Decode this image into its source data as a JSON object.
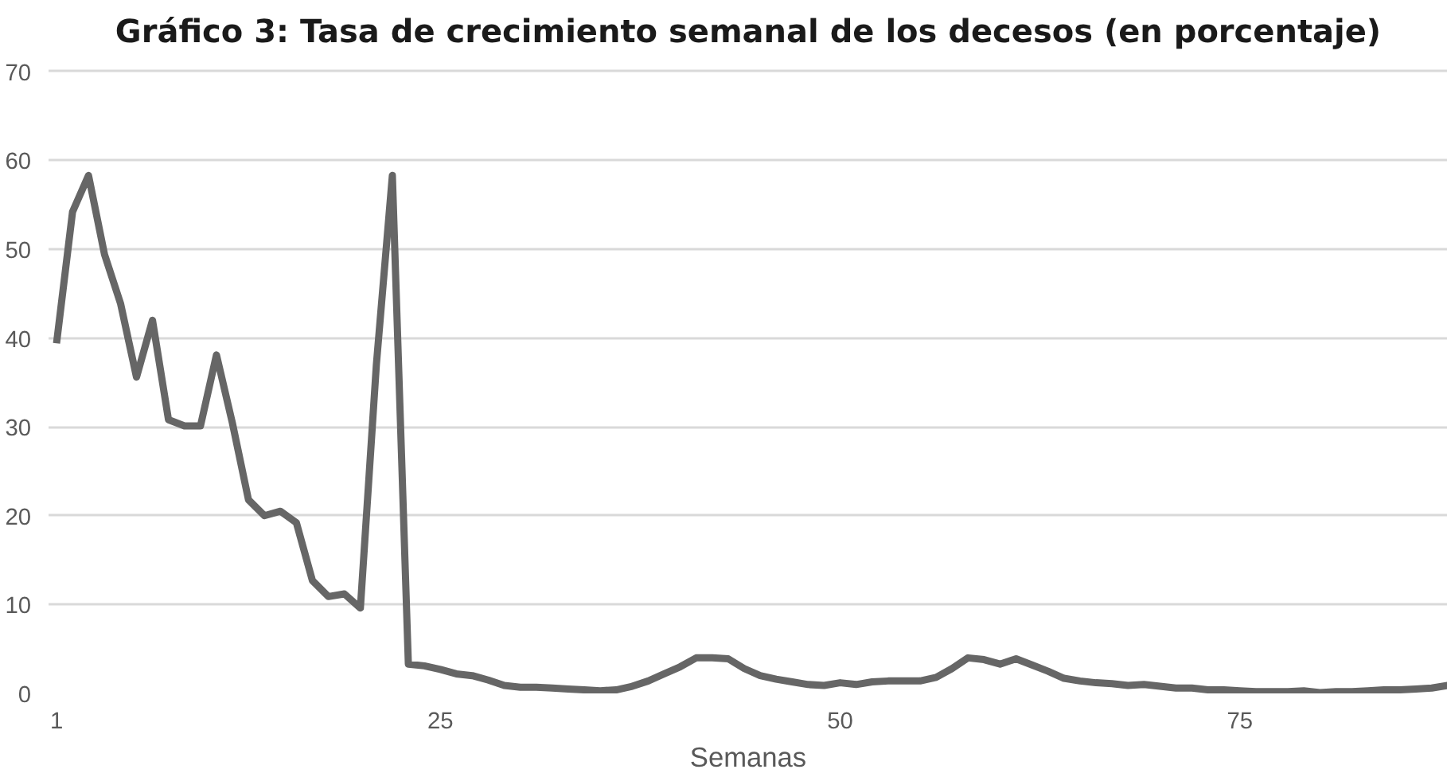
{
  "chart_data": {
    "type": "line",
    "title": "Gráfico 3: Tasa de crecimiento semanal de los decesos (en porcentaje)",
    "xlabel": "Semanas",
    "x": [
      1,
      2,
      3,
      4,
      5,
      6,
      7,
      8,
      9,
      10,
      11,
      12,
      13,
      14,
      15,
      16,
      17,
      18,
      19,
      20,
      21,
      22,
      23,
      24,
      25,
      26,
      27,
      28,
      29,
      30,
      31,
      32,
      33,
      34,
      35,
      36,
      37,
      38,
      39,
      40,
      41,
      42,
      43,
      44,
      45,
      46,
      47,
      48,
      49,
      50,
      51,
      52,
      53,
      54,
      55,
      56,
      57,
      58,
      59,
      60,
      61,
      62,
      63,
      64,
      65,
      66,
      67,
      68,
      69,
      70,
      71,
      72,
      73,
      74,
      75,
      76,
      77,
      78,
      79,
      80,
      81,
      82,
      83,
      84,
      85,
      86,
      87,
      88
    ],
    "series": [
      {
        "color": "#666666",
        "values": [
          39.4,
          54.2,
          58.3,
          49.4,
          43.9,
          35.6,
          42.0,
          30.8,
          30.1,
          30.1,
          38.1,
          30.4,
          21.8,
          20.0,
          20.5,
          19.2,
          12.7,
          10.9,
          11.2,
          9.6,
          37,
          58.3,
          3.3,
          3.1,
          2.7,
          2.2,
          2.0,
          1.5,
          0.9,
          0.7,
          0.7,
          0.6,
          0.5,
          0.4,
          0.3,
          0.4,
          0.8,
          1.4,
          2.2,
          3.0,
          4.0,
          4.0,
          3.9,
          2.8,
          2.0,
          1.6,
          1.3,
          1.0,
          0.9,
          1.2,
          1.0,
          1.3,
          1.4,
          1.4,
          1.4,
          1.8,
          2.8,
          4.0,
          3.8,
          3.3,
          3.9,
          3.2,
          2.5,
          1.7,
          1.4,
          1.2,
          1.1,
          0.9,
          1.0,
          0.8,
          0.6,
          0.6,
          0.4,
          0.4,
          0.3,
          0.2,
          0.2,
          0.2,
          0.3,
          0.1,
          0.2,
          0.2,
          0.3,
          0.4,
          0.4,
          0.5,
          0.6,
          0.9
        ]
      }
    ],
    "xlim": [
      0.5,
      88
    ],
    "xticks": [
      1,
      25,
      50,
      75
    ],
    "ylim": [
      0,
      70
    ],
    "yticks": [
      0,
      10,
      20,
      30,
      40,
      50,
      60,
      70
    ],
    "grid": "y",
    "marker": "none",
    "line_style": "solid"
  }
}
